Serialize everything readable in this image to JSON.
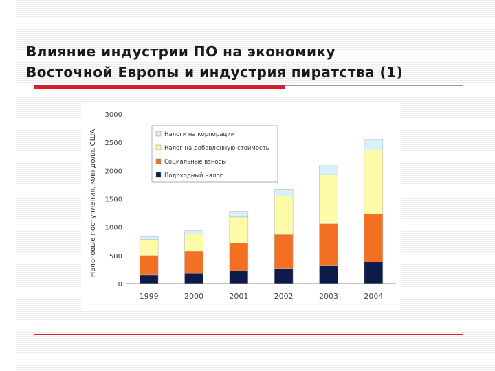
{
  "slide": {
    "title_line1": "Влияние индустрии ПО на экономику",
    "title_line2": "Восточной Европы и индустрия пиратства (1)"
  },
  "chart_data": {
    "type": "bar",
    "stacked": true,
    "categories": [
      "1999",
      "2000",
      "2001",
      "2002",
      "2003",
      "2004"
    ],
    "ylabel": "Налоговые поступления, млн долл. США",
    "xlabel": "",
    "ylim": [
      0,
      3000
    ],
    "yticks": [
      0,
      500,
      1000,
      1500,
      2000,
      2500,
      3000
    ],
    "grid": false,
    "legend_position": "top-left",
    "series": [
      {
        "name": "Подоходный налог",
        "color": "#0d1b4a",
        "values": [
          160,
          180,
          230,
          270,
          320,
          380
        ]
      },
      {
        "name": "Социальные взносы",
        "color": "#f36f21",
        "values": [
          340,
          390,
          490,
          600,
          740,
          850
        ]
      },
      {
        "name": "Налог на добавленную стоимость",
        "color": "#fdfba8",
        "values": [
          280,
          310,
          460,
          680,
          870,
          1130
        ]
      },
      {
        "name": "Налоги на корпорации",
        "color": "#d6f1f9",
        "values": [
          50,
          60,
          100,
          120,
          160,
          190
        ]
      }
    ],
    "legend_order": [
      "Налоги на корпорации",
      "Налог на добавленную стоимость",
      "Социальные взносы",
      "Подоходный налог"
    ]
  }
}
